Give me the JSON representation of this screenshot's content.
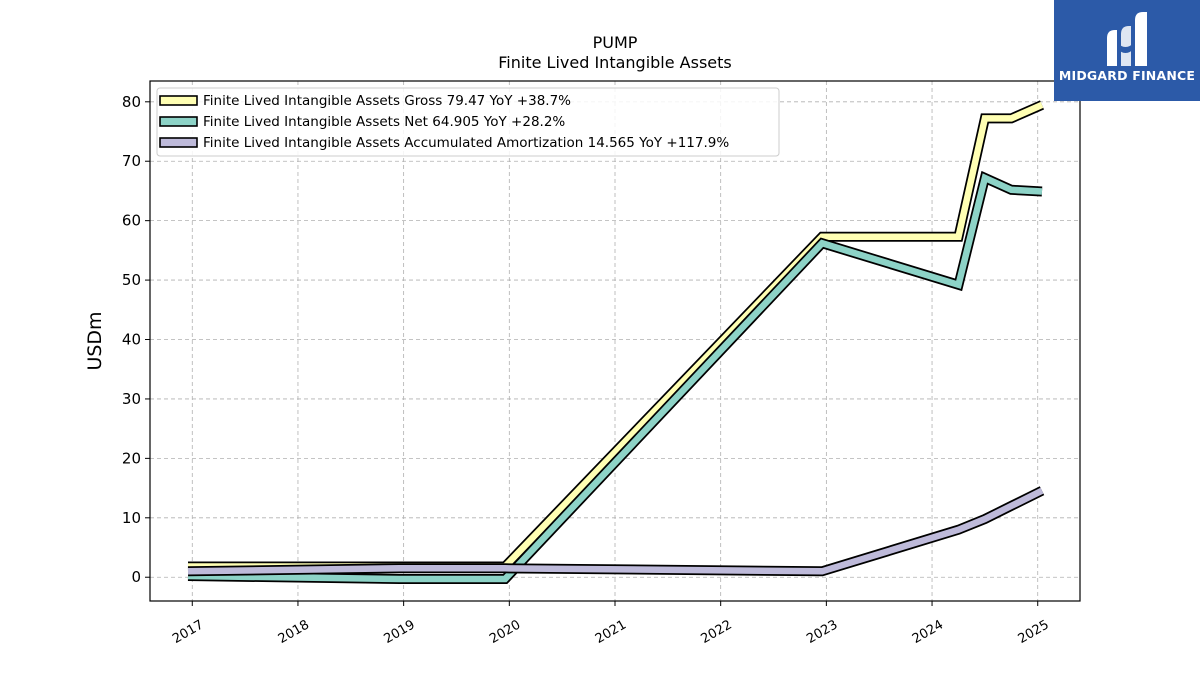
{
  "logo": {
    "text": "MIDGARD FINANCE",
    "color": "#2c5aa8"
  },
  "chart_data": {
    "type": "line",
    "title": "PUMP",
    "subtitle": "Finite Lived Intangible Assets",
    "ylabel": "USDm",
    "xlim": [
      2016.6,
      2025.4
    ],
    "ylim": [
      -4,
      83.5
    ],
    "yticks": [
      0,
      10,
      20,
      30,
      40,
      50,
      60,
      70,
      80
    ],
    "xticks": [
      2017,
      2018,
      2019,
      2020,
      2021,
      2022,
      2023,
      2024,
      2025
    ],
    "grid": true,
    "legend_position": "top-left",
    "series": [
      {
        "name": "Finite Lived Intangible Assets Gross  79.47 YoY +38.7%",
        "color": "#ffffb3",
        "points": [
          [
            2016.96,
            1.8
          ],
          [
            2018.96,
            1.8
          ],
          [
            2019.96,
            1.8
          ],
          [
            2022.96,
            57.3
          ],
          [
            2024.25,
            57.3
          ],
          [
            2024.5,
            77.2
          ],
          [
            2024.75,
            77.2
          ],
          [
            2025.04,
            79.47
          ]
        ]
      },
      {
        "name": "Finite Lived Intangible Assets Net  64.905 YoY +28.2%",
        "color": "#8dd3c7",
        "points": [
          [
            2016.96,
            0.2
          ],
          [
            2018.96,
            -0.3
          ],
          [
            2019.96,
            -0.3
          ],
          [
            2022.96,
            56.2
          ],
          [
            2024.25,
            49.2
          ],
          [
            2024.5,
            67.2
          ],
          [
            2024.75,
            65.2
          ],
          [
            2025.04,
            64.905
          ]
        ]
      },
      {
        "name": "Finite Lived Intangible Assets Accumulated Amortization  14.565 YoY +117.9%",
        "color": "#bebada",
        "points": [
          [
            2016.96,
            1.0
          ],
          [
            2018.96,
            1.5
          ],
          [
            2019.96,
            1.5
          ],
          [
            2022.96,
            1.0
          ],
          [
            2024.25,
            8.0
          ],
          [
            2024.5,
            9.8
          ],
          [
            2024.75,
            12.0
          ],
          [
            2025.04,
            14.565
          ]
        ]
      }
    ]
  }
}
